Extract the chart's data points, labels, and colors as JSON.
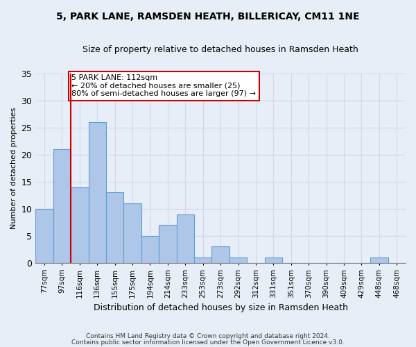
{
  "title1": "5, PARK LANE, RAMSDEN HEATH, BILLERICAY, CM11 1NE",
  "title2": "Size of property relative to detached houses in Ramsden Heath",
  "xlabel": "Distribution of detached houses by size in Ramsden Heath",
  "ylabel": "Number of detached properties",
  "categories": [
    "77sqm",
    "97sqm",
    "116sqm",
    "136sqm",
    "155sqm",
    "175sqm",
    "194sqm",
    "214sqm",
    "233sqm",
    "253sqm",
    "273sqm",
    "292sqm",
    "312sqm",
    "331sqm",
    "351sqm",
    "370sqm",
    "390sqm",
    "409sqm",
    "429sqm",
    "448sqm",
    "468sqm"
  ],
  "values": [
    10,
    21,
    14,
    26,
    13,
    11,
    5,
    7,
    9,
    1,
    3,
    1,
    0,
    1,
    0,
    0,
    0,
    0,
    0,
    1,
    0
  ],
  "bar_color": "#aec6e8",
  "bar_edge_color": "#5a9fd4",
  "vline_x": 1.5,
  "vline_color": "#cc0000",
  "annotation_text": "5 PARK LANE: 112sqm\n← 20% of detached houses are smaller (25)\n80% of semi-detached houses are larger (97) →",
  "annotation_box_color": "#ffffff",
  "annotation_box_edge": "#cc0000",
  "ylim": [
    0,
    35
  ],
  "yticks": [
    0,
    5,
    10,
    15,
    20,
    25,
    30,
    35
  ],
  "grid_color": "#d0d8e8",
  "background_color": "#e8eef8",
  "footer1": "Contains HM Land Registry data © Crown copyright and database right 2024.",
  "footer2": "Contains public sector information licensed under the Open Government Licence v3.0."
}
